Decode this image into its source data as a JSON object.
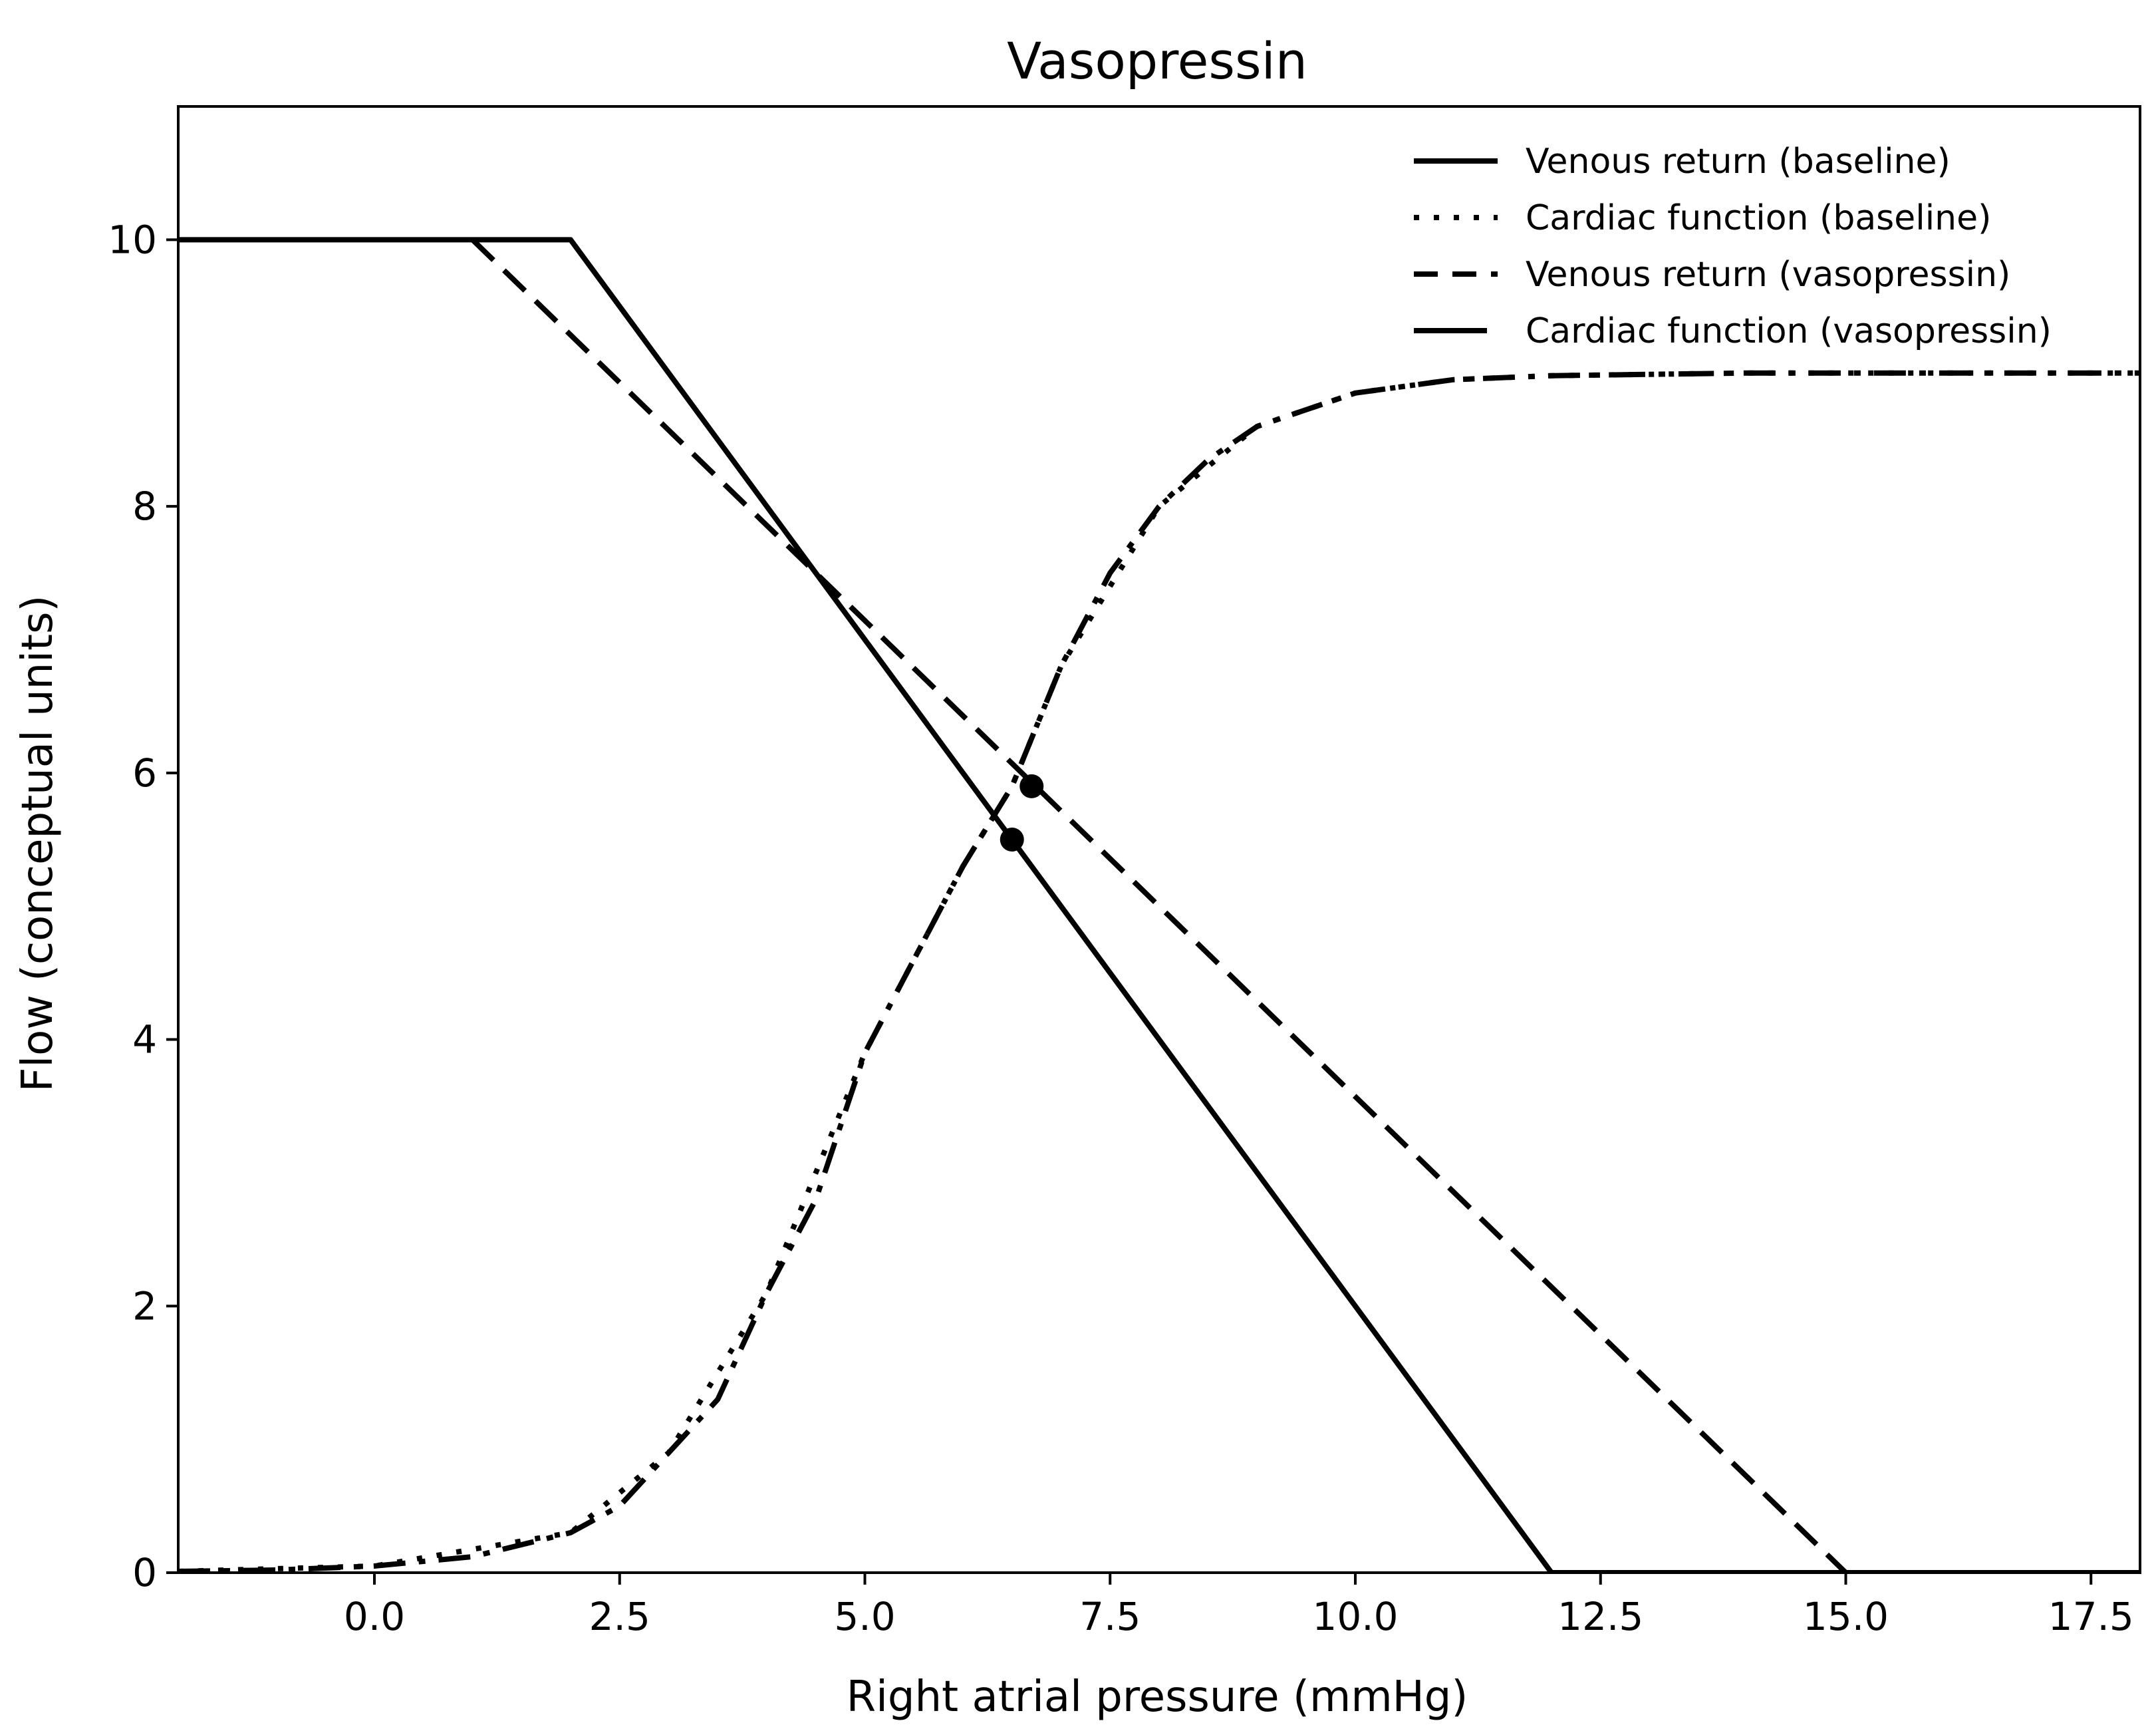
{
  "chart_data": {
    "type": "line",
    "title": "Vasopressin",
    "xlabel": "Right atrial pressure (mmHg)",
    "ylabel": "Flow (conceptual units)",
    "xlim": [
      -2.0,
      18.0
    ],
    "ylim": [
      0,
      11
    ],
    "grid": false,
    "legend_position": "top-right",
    "x_ticks": [
      "0.0",
      "2.5",
      "5.0",
      "7.5",
      "10.0",
      "12.5",
      "15.0",
      "17.5"
    ],
    "x_tick_values": [
      0,
      2.5,
      5,
      7.5,
      10,
      12.5,
      15,
      17.5
    ],
    "y_ticks": [
      "0",
      "2",
      "4",
      "6",
      "8",
      "10"
    ],
    "y_tick_values": [
      0,
      2,
      4,
      6,
      8,
      10
    ],
    "series": [
      {
        "name": "Venous return (baseline)",
        "style": "solid",
        "x": [
          -2,
          2,
          12,
          18
        ],
        "y": [
          10,
          10,
          0,
          0
        ]
      },
      {
        "name": "Cardiac function (baseline)",
        "style": "dotted",
        "x": [
          -2,
          0,
          2,
          3,
          4,
          5,
          6,
          6.5,
          7,
          8,
          9,
          10,
          11,
          12,
          14,
          16,
          18
        ],
        "y": [
          0.01,
          0.05,
          0.3,
          0.9,
          2.1,
          3.9,
          5.3,
          5.9,
          6.8,
          8.0,
          8.6,
          8.85,
          8.95,
          8.98,
          9.0,
          9.0,
          9.0
        ]
      },
      {
        "name": "Venous return (vasopressin)",
        "style": "dashed",
        "x": [
          1,
          15,
          18
        ],
        "y": [
          10,
          0,
          0
        ]
      },
      {
        "name": "Cardiac function (vasopressin)",
        "style": "dashdot",
        "x": [
          -2,
          -1,
          0,
          1,
          2,
          2.5,
          3,
          3.5,
          4,
          4.5,
          5,
          5.5,
          6,
          6.5,
          7,
          7.5,
          8,
          8.5,
          9,
          10,
          11,
          12,
          13,
          14,
          15,
          16,
          17,
          18
        ],
        "y": [
          0.01,
          0.02,
          0.05,
          0.12,
          0.3,
          0.5,
          0.9,
          1.3,
          2.1,
          2.8,
          3.9,
          4.6,
          5.3,
          5.9,
          6.8,
          7.5,
          8.0,
          8.35,
          8.6,
          8.85,
          8.95,
          8.98,
          8.99,
          9.0,
          9.0,
          9.0,
          9.0,
          9.0
        ]
      }
    ],
    "markers": [
      {
        "x": 6.5,
        "y": 5.5
      },
      {
        "x": 6.7,
        "y": 5.9
      }
    ],
    "colors": {
      "line": "#000000",
      "background": "#ffffff"
    }
  }
}
